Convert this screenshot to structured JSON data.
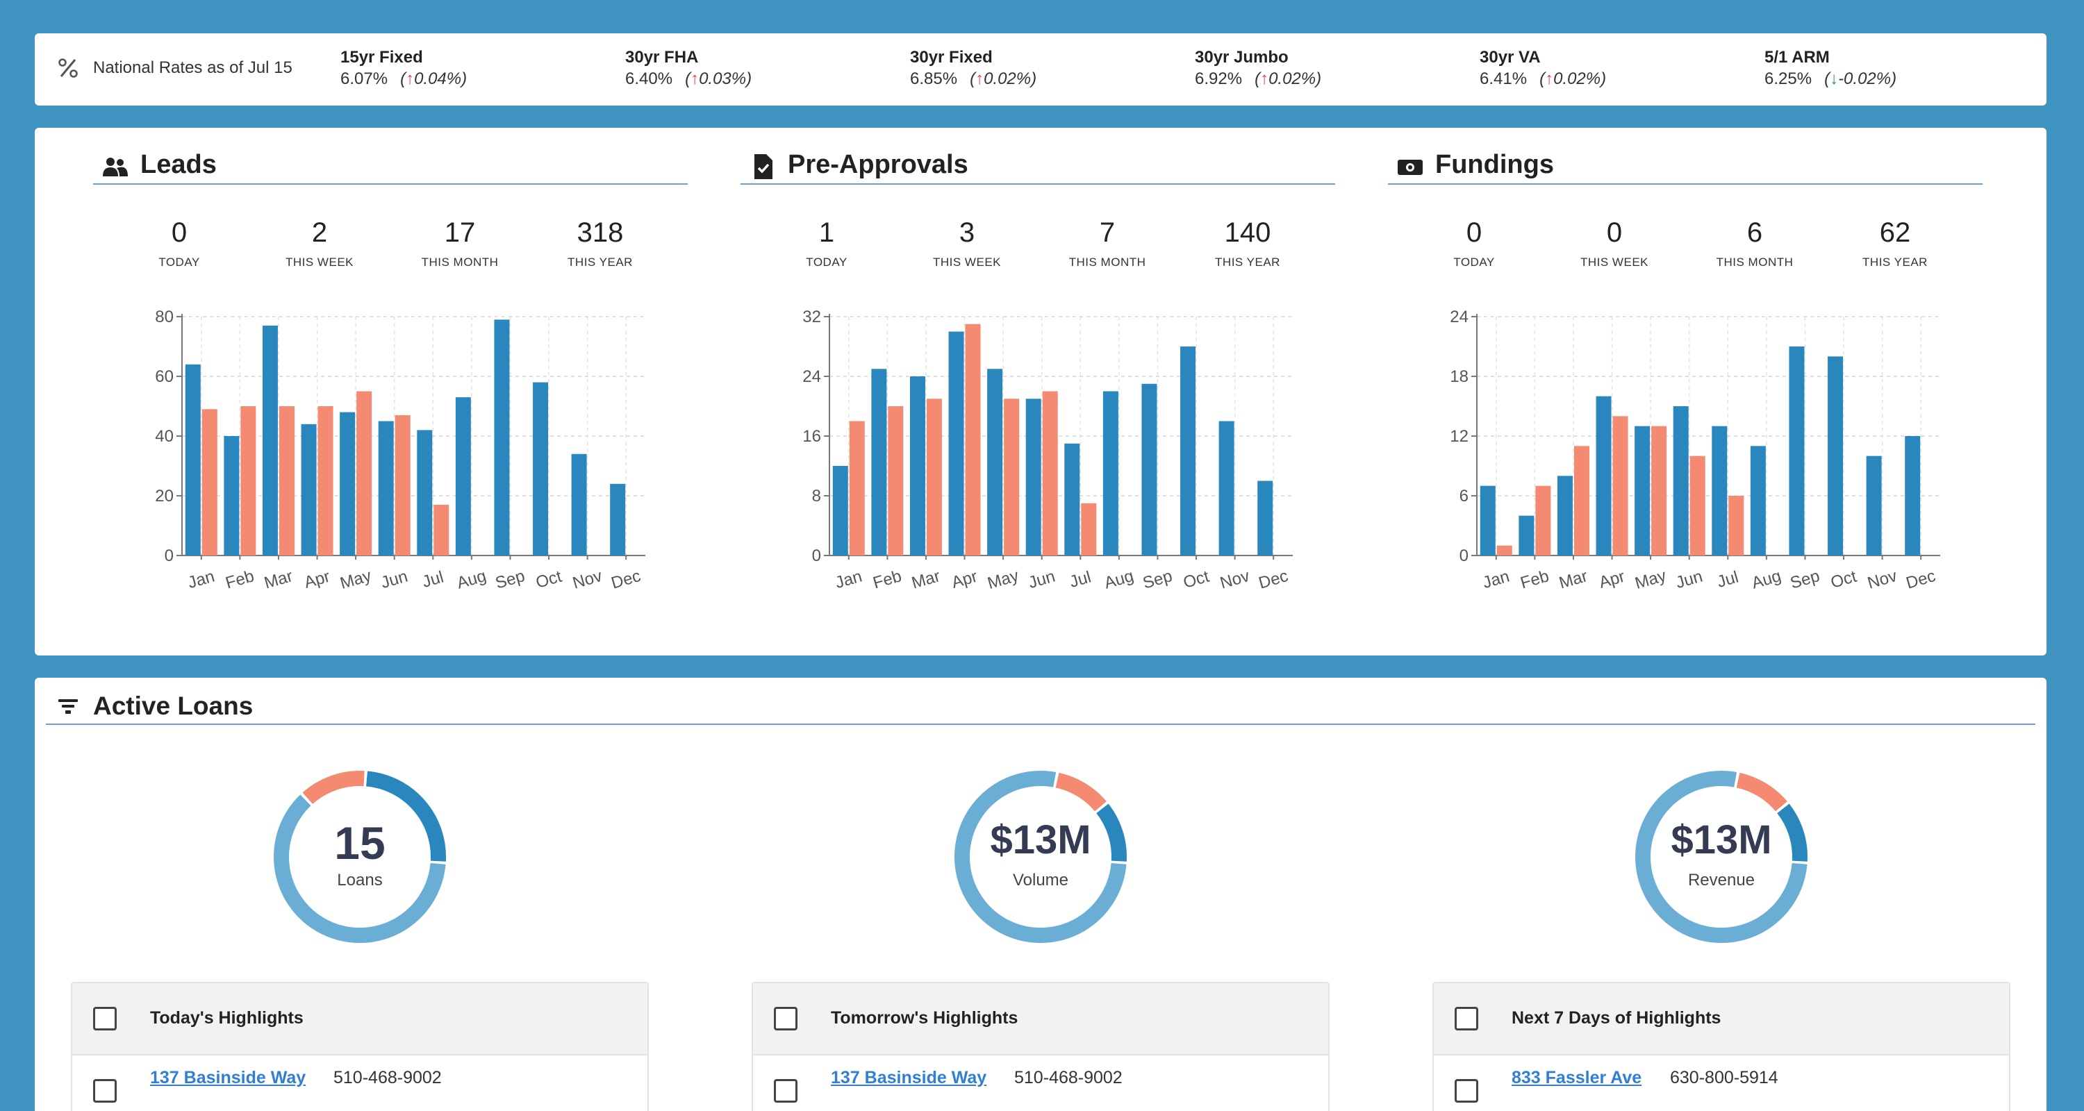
{
  "rates": {
    "label": "National Rates as of Jul 15",
    "items": [
      {
        "name": "15yr Fixed",
        "rate": "6.07%",
        "dir": "up",
        "arrow": "↑",
        "change": "0.04%"
      },
      {
        "name": "30yr FHA",
        "rate": "6.40%",
        "dir": "up",
        "arrow": "↑",
        "change": "0.03%"
      },
      {
        "name": "30yr Fixed",
        "rate": "6.85%",
        "dir": "up",
        "arrow": "↑",
        "change": "0.02%"
      },
      {
        "name": "30yr Jumbo",
        "rate": "6.92%",
        "dir": "up",
        "arrow": "↑",
        "change": "0.02%"
      },
      {
        "name": "30yr VA",
        "rate": "6.41%",
        "dir": "up",
        "arrow": "↑",
        "change": "0.02%"
      },
      {
        "name": "5/1 ARM",
        "rate": "6.25%",
        "dir": "down",
        "arrow": "↓",
        "change": "-0.02%"
      }
    ]
  },
  "sections": [
    {
      "title": "Leads",
      "icon": "people-icon",
      "metrics": [
        {
          "value": "0",
          "label": "TODAY"
        },
        {
          "value": "2",
          "label": "THIS WEEK"
        },
        {
          "value": "17",
          "label": "THIS MONTH"
        },
        {
          "value": "318",
          "label": "THIS YEAR"
        }
      ]
    },
    {
      "title": "Pre-Approvals",
      "icon": "document-check-icon",
      "metrics": [
        {
          "value": "1",
          "label": "TODAY"
        },
        {
          "value": "3",
          "label": "THIS WEEK"
        },
        {
          "value": "7",
          "label": "THIS MONTH"
        },
        {
          "value": "140",
          "label": "THIS YEAR"
        }
      ]
    },
    {
      "title": "Fundings",
      "icon": "money-icon",
      "metrics": [
        {
          "value": "0",
          "label": "TODAY"
        },
        {
          "value": "0",
          "label": "THIS WEEK"
        },
        {
          "value": "6",
          "label": "THIS MONTH"
        },
        {
          "value": "62",
          "label": "THIS YEAR"
        }
      ]
    }
  ],
  "chart_data": [
    {
      "type": "bar",
      "categories": [
        "Jan",
        "Feb",
        "Mar",
        "Apr",
        "May",
        "Jun",
        "Jul",
        "Aug",
        "Sep",
        "Oct",
        "Nov",
        "Dec"
      ],
      "series": [
        {
          "color": "#2a87bd",
          "values": [
            64,
            40,
            77,
            44,
            48,
            45,
            42,
            53,
            79,
            58,
            34,
            24
          ]
        },
        {
          "color": "#f48a72",
          "values": [
            49,
            50,
            50,
            50,
            55,
            47,
            17,
            null,
            null,
            null,
            null,
            null
          ]
        }
      ],
      "ylim": [
        0,
        80
      ],
      "yticks": [
        0,
        20,
        40,
        60,
        80
      ],
      "grid": true
    },
    {
      "type": "bar",
      "categories": [
        "Jan",
        "Feb",
        "Mar",
        "Apr",
        "May",
        "Jun",
        "Jul",
        "Aug",
        "Sep",
        "Oct",
        "Nov",
        "Dec"
      ],
      "series": [
        {
          "color": "#2a87bd",
          "values": [
            12,
            25,
            24,
            30,
            25,
            21,
            15,
            22,
            23,
            28,
            18,
            10
          ]
        },
        {
          "color": "#f48a72",
          "values": [
            18,
            20,
            21,
            31,
            21,
            22,
            7,
            null,
            null,
            null,
            null,
            null
          ]
        }
      ],
      "ylim": [
        0,
        32
      ],
      "yticks": [
        0,
        8,
        16,
        24,
        32
      ],
      "grid": true
    },
    {
      "type": "bar",
      "categories": [
        "Jan",
        "Feb",
        "Mar",
        "Apr",
        "May",
        "Jun",
        "Jul",
        "Aug",
        "Sep",
        "Oct",
        "Nov",
        "Dec"
      ],
      "series": [
        {
          "color": "#2a87bd",
          "values": [
            7,
            4,
            8,
            16,
            13,
            15,
            13,
            11,
            21,
            20,
            10,
            12
          ]
        },
        {
          "color": "#f48a72",
          "values": [
            1,
            7,
            11,
            14,
            13,
            10,
            6,
            null,
            null,
            null,
            null,
            null
          ]
        }
      ],
      "ylim": [
        0,
        24
      ],
      "yticks": [
        0,
        6,
        12,
        18,
        24
      ],
      "grid": true
    }
  ],
  "active_loans": {
    "title": "Active Loans",
    "donuts": [
      {
        "value": "15",
        "label": "Loans",
        "segments": [
          0.62,
          0.13,
          0.25
        ]
      },
      {
        "value": "$13M",
        "label": "Volume",
        "segments": [
          0.77,
          0.11,
          0.12
        ]
      },
      {
        "value": "$13M",
        "label": "Revenue",
        "segments": [
          0.77,
          0.11,
          0.12
        ]
      }
    ],
    "donut_colors": [
      "#6aaed6",
      "#f48a72",
      "#2a87bd"
    ],
    "highlights": [
      {
        "title": "Today's Highlights",
        "address": "137 Basinside Way",
        "phone": "510-468-9002"
      },
      {
        "title": "Tomorrow's Highlights",
        "address": "137 Basinside Way",
        "phone": "510-468-9002"
      },
      {
        "title": "Next 7 Days of Highlights",
        "address": "833 Fassler Ave",
        "phone": "630-800-5914"
      }
    ]
  }
}
